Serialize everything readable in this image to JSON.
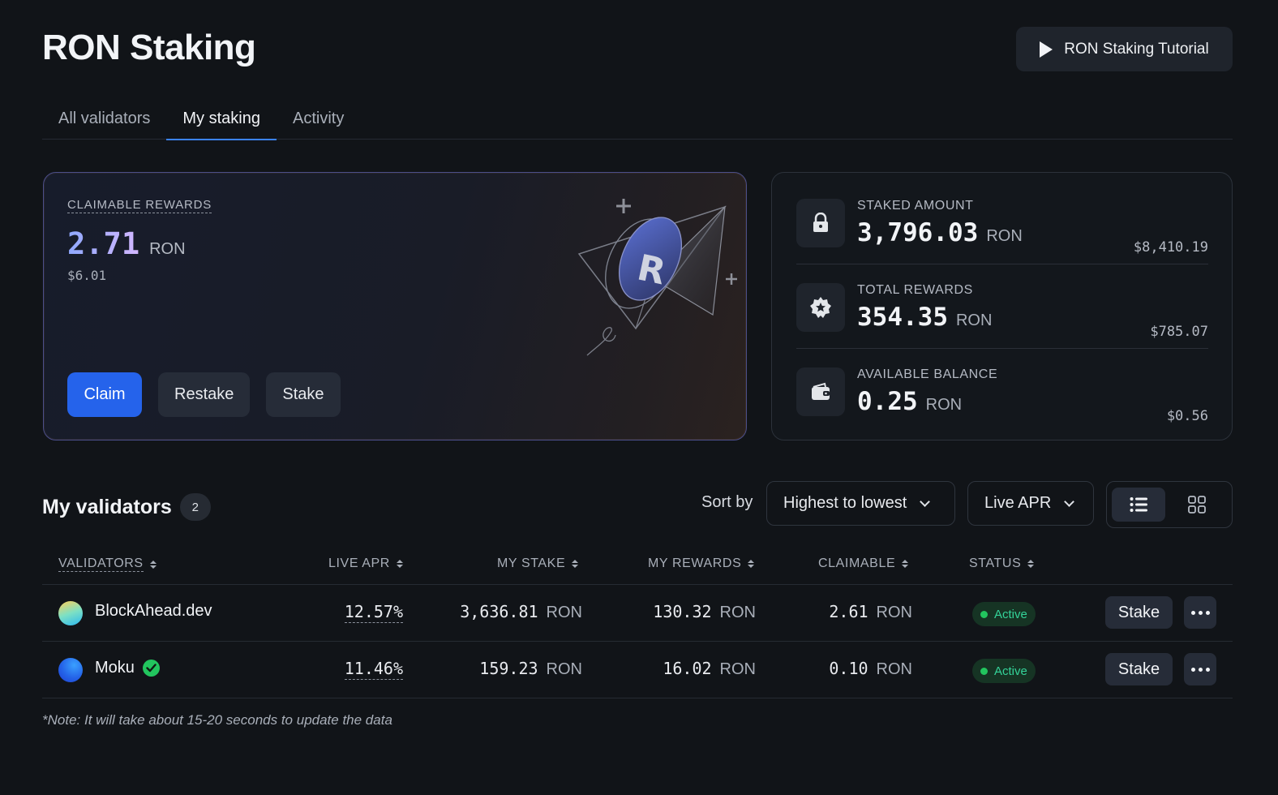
{
  "header": {
    "title": "RON Staking",
    "tutorial_label": "RON Staking Tutorial"
  },
  "tabs": [
    {
      "label": "All validators",
      "active": false
    },
    {
      "label": "My staking",
      "active": true
    },
    {
      "label": "Activity",
      "active": false
    }
  ],
  "rewards": {
    "label": "CLAIMABLE REWARDS",
    "value": "2.71",
    "unit": "RON",
    "usd": "$6.01",
    "actions": {
      "claim": "Claim",
      "restake": "Restake",
      "stake": "Stake"
    }
  },
  "stats": [
    {
      "label": "STAKED AMOUNT",
      "value": "3,796.03",
      "unit": "RON",
      "usd": "$8,410.19",
      "icon": "lock-icon"
    },
    {
      "label": "TOTAL REWARDS",
      "value": "354.35",
      "unit": "RON",
      "usd": "$785.07",
      "icon": "star-badge-icon"
    },
    {
      "label": "AVAILABLE BALANCE",
      "value": "0.25",
      "unit": "RON",
      "usd": "$0.56",
      "icon": "wallet-icon"
    }
  ],
  "validators_section": {
    "title": "My validators",
    "count": "2",
    "sort_label": "Sort by",
    "sort_order": "Highest to lowest",
    "sort_field": "Live APR",
    "view": "list"
  },
  "table": {
    "headers": {
      "validators": "VALIDATORS",
      "live_apr": "LIVE APR",
      "my_stake": "MY STAKE",
      "my_rewards": "MY REWARDS",
      "claimable": "CLAIMABLE",
      "status": "STATUS"
    },
    "rows": [
      {
        "name": "BlockAhead.dev",
        "verified": false,
        "apr": "12.57",
        "apr_unit": "%",
        "stake": "3,636.81",
        "rewards": "130.32",
        "claimable": "2.61",
        "unit": "RON",
        "status": "Active",
        "action": "Stake"
      },
      {
        "name": "Moku",
        "verified": true,
        "apr": "11.46",
        "apr_unit": "%",
        "stake": "159.23",
        "rewards": "16.02",
        "claimable": "0.10",
        "unit": "RON",
        "status": "Active",
        "action": "Stake"
      }
    ]
  },
  "note": "*Note: It will take about 15-20 seconds to update the data",
  "colors": {
    "background": "#111418",
    "accent": "#2563eb",
    "tab_underline": "#3b82f6",
    "status_active": "#22c55e"
  }
}
